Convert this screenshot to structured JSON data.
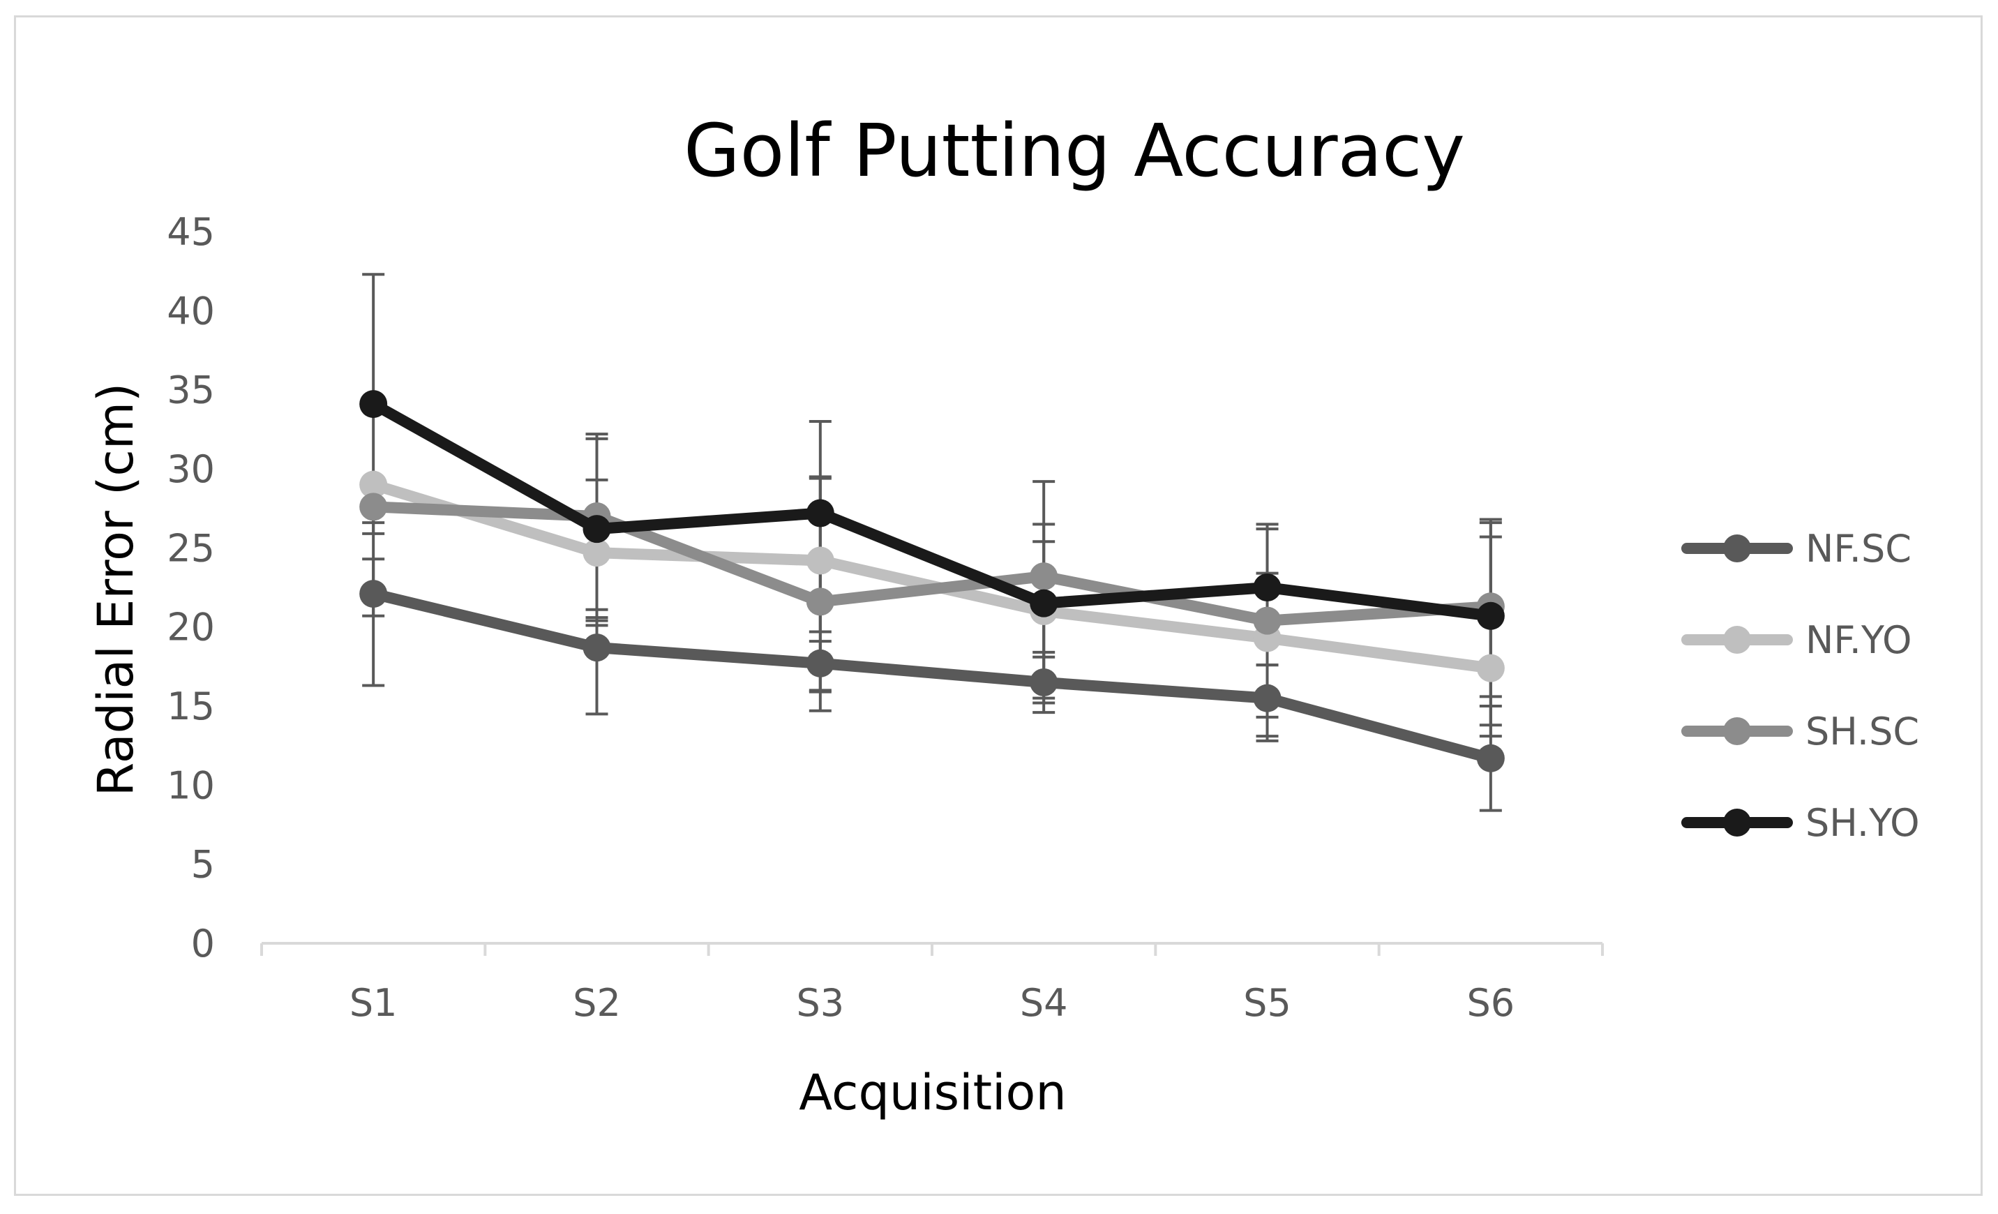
{
  "chart_data": {
    "type": "line",
    "title": "Golf Putting Accuracy",
    "xlabel": "Acquisition",
    "ylabel": "Radial Error (cm)",
    "categories": [
      "S1",
      "S2",
      "S3",
      "S4",
      "S5",
      "S6"
    ],
    "ylim": [
      0,
      45
    ],
    "yticks": [
      0,
      5,
      10,
      15,
      20,
      25,
      30,
      35,
      40,
      45
    ],
    "grid": false,
    "legend_position": "right",
    "series": [
      {
        "name": "NF.SC",
        "color": "#595959",
        "values": [
          22.1,
          18.7,
          17.7,
          16.5,
          15.5,
          11.7
        ],
        "error_upper": [
          24.3,
          20.6,
          19.1,
          18.4,
          17.6,
          15.0
        ],
        "error_lower": [
          16.3,
          14.5,
          15.9,
          14.6,
          13.1,
          8.4
        ]
      },
      {
        "name": "NF.YO",
        "color": "#bfbfbf",
        "values": [
          29.0,
          24.7,
          24.2,
          21.0,
          19.3,
          17.4
        ],
        "error_upper": [
          29.4,
          29.3,
          29.5,
          26.5,
          26.2,
          25.7
        ],
        "error_lower": [
          26.6,
          21.1,
          19.7,
          15.2,
          12.8,
          13.8
        ]
      },
      {
        "name": "SH.SC",
        "color": "#8c8c8c",
        "values": [
          27.6,
          27.0,
          21.6,
          23.2,
          20.4,
          21.3
        ],
        "error_upper": [
          29.0,
          31.9,
          29.4,
          25.4,
          23.4,
          26.6
        ],
        "error_lower": [
          25.9,
          20.1,
          16.0,
          18.1,
          14.3,
          15.6
        ]
      },
      {
        "name": "SH.YO",
        "color": "#1a1a1a",
        "values": [
          34.1,
          26.2,
          27.2,
          21.5,
          22.5,
          20.7
        ],
        "error_upper": [
          42.3,
          32.2,
          33.0,
          29.2,
          26.5,
          26.8
        ],
        "error_lower": [
          20.7,
          20.4,
          14.7,
          15.5,
          17.6,
          13.1
        ]
      }
    ]
  }
}
